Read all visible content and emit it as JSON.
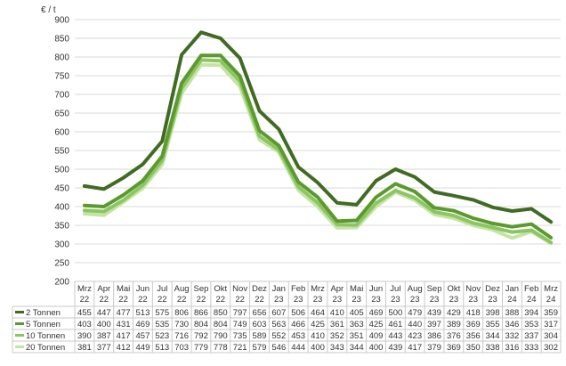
{
  "chart_data": {
    "type": "line",
    "ylabel": "€ / t",
    "ylim": [
      200,
      900
    ],
    "yticks": [
      200,
      250,
      300,
      350,
      400,
      450,
      500,
      550,
      600,
      650,
      700,
      750,
      800,
      850,
      900
    ],
    "grid": true,
    "legend": "data-table-below",
    "categories": [
      [
        "Mrz",
        "22"
      ],
      [
        "Apr",
        "22"
      ],
      [
        "Mai",
        "22"
      ],
      [
        "Jun",
        "22"
      ],
      [
        "Jul",
        "22"
      ],
      [
        "Aug",
        "22"
      ],
      [
        "Sep",
        "22"
      ],
      [
        "Okt",
        "22"
      ],
      [
        "Nov",
        "22"
      ],
      [
        "Dez",
        "22"
      ],
      [
        "Jan",
        "23"
      ],
      [
        "Feb",
        "23"
      ],
      [
        "Mrz",
        "23"
      ],
      [
        "Apr",
        "23"
      ],
      [
        "Mai",
        "23"
      ],
      [
        "Jun",
        "23"
      ],
      [
        "Jul",
        "23"
      ],
      [
        "Aug",
        "23"
      ],
      [
        "Sep",
        "23"
      ],
      [
        "Okt",
        "23"
      ],
      [
        "Nov",
        "23"
      ],
      [
        "Dez",
        "23"
      ],
      [
        "Jan",
        "24"
      ],
      [
        "Feb",
        "24"
      ],
      [
        "Mrz",
        "24"
      ]
    ],
    "series": [
      {
        "name": "2 Tonnen",
        "color": "#3f6b22",
        "values": [
          455,
          447,
          477,
          513,
          575,
          806,
          866,
          850,
          797,
          656,
          607,
          506,
          464,
          410,
          405,
          469,
          500,
          479,
          439,
          429,
          418,
          398,
          388,
          394,
          359
        ]
      },
      {
        "name": "5 Tonnen",
        "color": "#5a9a2e",
        "values": [
          403,
          400,
          431,
          469,
          535,
          730,
          804,
          804,
          749,
          603,
          563,
          466,
          425,
          361,
          363,
          425,
          461,
          440,
          397,
          389,
          369,
          355,
          346,
          353,
          317
        ]
      },
      {
        "name": "10 Tonnen",
        "color": "#8cc561",
        "values": [
          390,
          387,
          417,
          457,
          523,
          716,
          792,
          790,
          735,
          589,
          552,
          453,
          410,
          352,
          351,
          409,
          443,
          423,
          386,
          376,
          356,
          344,
          332,
          337,
          304
        ]
      },
      {
        "name": "20 Tonnen",
        "color": "#c4e4a6",
        "values": [
          381,
          377,
          412,
          449,
          513,
          703,
          779,
          778,
          721,
          579,
          546,
          444,
          400,
          343,
          344,
          400,
          439,
          417,
          379,
          369,
          350,
          338,
          316,
          333,
          302
        ]
      }
    ]
  }
}
